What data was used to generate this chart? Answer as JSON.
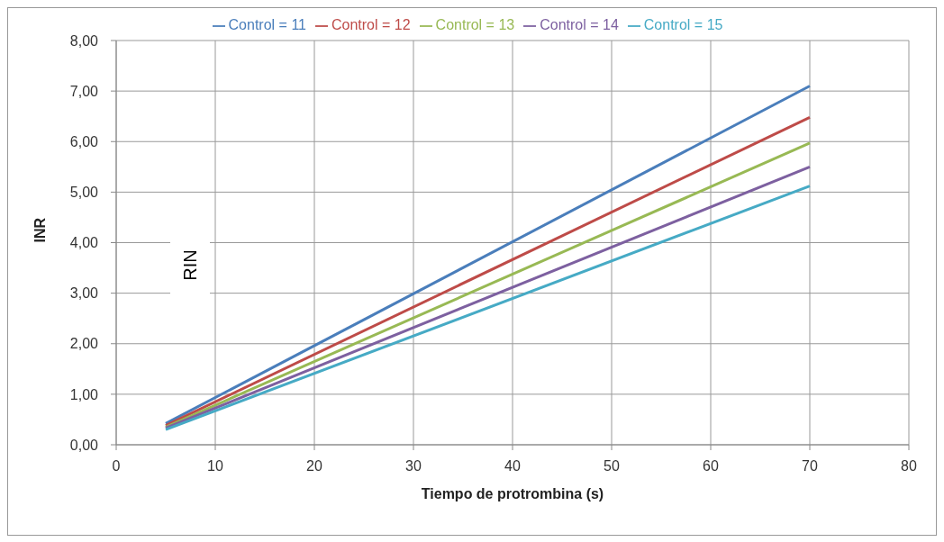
{
  "chart_data": {
    "type": "line",
    "xlabel": "Tiempo de protrombina (s)",
    "ylabel": "INR",
    "annotations": [
      "RIN"
    ],
    "x": [
      5,
      70
    ],
    "series": [
      {
        "name": "Control = 11",
        "color": "#4a7ebb",
        "values": [
          0.42,
          7.1
        ]
      },
      {
        "name": "Control = 12",
        "color": "#be4b48",
        "values": [
          0.38,
          6.48
        ]
      },
      {
        "name": "Control = 13",
        "color": "#98b954",
        "values": [
          0.35,
          5.97
        ]
      },
      {
        "name": "Control = 14",
        "color": "#7d60a0",
        "values": [
          0.33,
          5.5
        ]
      },
      {
        "name": "Control = 15",
        "color": "#46aac5",
        "values": [
          0.3,
          5.12
        ]
      }
    ],
    "xlim": [
      0,
      80
    ],
    "xticks": [
      0,
      10,
      20,
      30,
      40,
      50,
      60,
      70,
      80
    ],
    "ylim": [
      0,
      8
    ],
    "yticks": [
      {
        "value": 0,
        "label": "0,00"
      },
      {
        "value": 1,
        "label": "1,00"
      },
      {
        "value": 2,
        "label": "2,00"
      },
      {
        "value": 3,
        "label": "3,00"
      },
      {
        "value": 4,
        "label": "4,00"
      },
      {
        "value": 5,
        "label": "5,00"
      },
      {
        "value": 6,
        "label": "6,00"
      },
      {
        "value": 7,
        "label": "7,00"
      },
      {
        "value": 8,
        "label": "8,00"
      }
    ],
    "grid": true,
    "legend": "top",
    "marker": "none",
    "line_style": "solid"
  }
}
